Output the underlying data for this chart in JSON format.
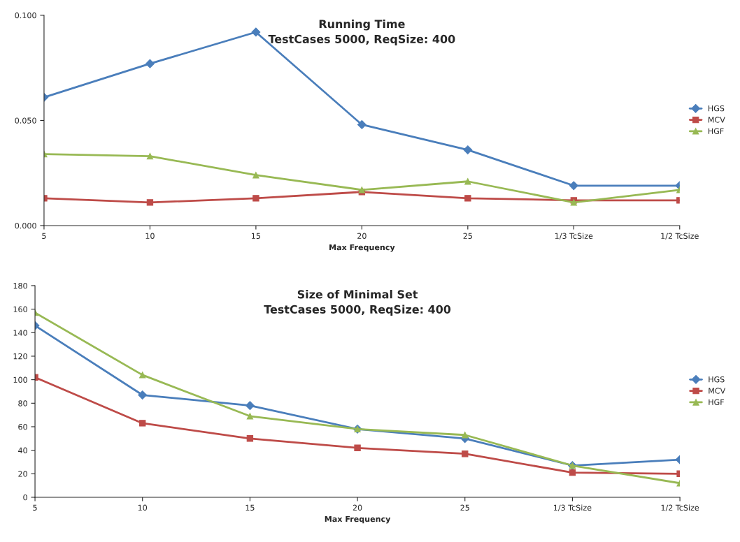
{
  "chart_data": [
    {
      "type": "line",
      "title": "Running Time",
      "subtitle": "TestCases 5000, ReqSize: 400",
      "xlabel": "Max Frequency",
      "categories": [
        "5",
        "10",
        "15",
        "20",
        "25",
        "1/3 TcSize",
        "1/2 TcSize"
      ],
      "ylim": [
        0,
        0.1
      ],
      "yticks": [
        {
          "value": 0,
          "label": "0.000"
        },
        {
          "value": 0.05,
          "label": "0.050"
        },
        {
          "value": 0.1,
          "label": "0.100"
        }
      ],
      "grid": false,
      "legend": "right",
      "line_style": "solid",
      "series": [
        {
          "name": "HGS",
          "color": "#4a7ebb",
          "marker": "diamond",
          "values": [
            0.061,
            0.077,
            0.092,
            0.048,
            0.036,
            0.019,
            0.019
          ]
        },
        {
          "name": "MCV",
          "color": "#be4b48",
          "marker": "square",
          "values": [
            0.013,
            0.011,
            0.013,
            0.016,
            0.013,
            0.012,
            0.012
          ]
        },
        {
          "name": "HGF",
          "color": "#98b954",
          "marker": "triangle",
          "values": [
            0.034,
            0.033,
            0.024,
            0.017,
            0.021,
            0.011,
            0.017
          ]
        }
      ]
    },
    {
      "type": "line",
      "title": "Size of Minimal Set",
      "subtitle": "TestCases 5000, ReqSize: 400",
      "xlabel": "Max Frequency",
      "categories": [
        "5",
        "10",
        "15",
        "20",
        "25",
        "1/3 TcSize",
        "1/2 TcSize"
      ],
      "ylim": [
        0,
        180
      ],
      "yticks": [
        0,
        20,
        40,
        60,
        80,
        100,
        120,
        140,
        160,
        180
      ],
      "grid": false,
      "legend": "right",
      "line_style": "solid",
      "series": [
        {
          "name": "HGS",
          "color": "#4a7ebb",
          "marker": "diamond",
          "values": [
            146,
            87,
            78,
            58,
            50,
            27,
            32
          ]
        },
        {
          "name": "MCV",
          "color": "#be4b48",
          "marker": "square",
          "values": [
            102,
            63,
            50,
            42,
            37,
            21,
            20
          ]
        },
        {
          "name": "HGF",
          "color": "#98b954",
          "marker": "triangle",
          "values": [
            157,
            104,
            69,
            58,
            53,
            27,
            12
          ]
        }
      ]
    }
  ]
}
